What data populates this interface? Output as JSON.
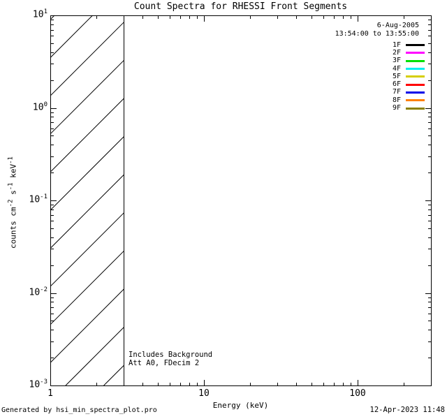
{
  "window": {
    "background": "#FFFFFF",
    "foreground": "#000000"
  },
  "chart_data": {
    "type": "line",
    "title": "Count Spectra for RHESSI Front Segments",
    "xlabel": "Energy (keV)",
    "ylabel": "counts cm-2 s-1 keV-1",
    "ylabel_parts": {
      "t1": "counts cm",
      "e1": "-2",
      "t2": " s",
      "e2": "-1",
      "t3": " keV",
      "e3": "-1"
    },
    "xscale": "log",
    "yscale": "log",
    "xlim": [
      1,
      300
    ],
    "ylim": [
      0.001,
      10
    ],
    "x_major_ticks": [
      1,
      10,
      100
    ],
    "y_major_ticks": [
      10,
      1,
      0.1,
      0.01,
      0.001
    ],
    "grid": false,
    "hatched_region": {
      "x_start": 1,
      "x_end": 3,
      "style": "diagonal-hatch"
    },
    "series": [
      {
        "name": "1F",
        "color": "#000000",
        "points": []
      },
      {
        "name": "2F",
        "color": "#FF00FF",
        "points": []
      },
      {
        "name": "3F",
        "color": "#00E000",
        "points": []
      },
      {
        "name": "4F",
        "color": "#00F0F0",
        "points": []
      },
      {
        "name": "5F",
        "color": "#D6CE00",
        "points": []
      },
      {
        "name": "6F",
        "color": "#FF0000",
        "points": []
      },
      {
        "name": "7F",
        "color": "#0000E8",
        "points": []
      },
      {
        "name": "8F",
        "color": "#FF8000",
        "points": []
      },
      {
        "name": "9F",
        "color": "#8B8000",
        "points": []
      }
    ],
    "legend": {
      "position": "top-right",
      "date": "6-Aug-2005",
      "time_range": "13:54:00 to 13:55:00"
    },
    "annotations": {
      "line1": "Includes Background",
      "line2": "Att A0, FDecim 2"
    }
  },
  "footer": {
    "left": "Generated by hsi_min_spectra_plot.pro",
    "right": "12-Apr-2023 11:48"
  }
}
